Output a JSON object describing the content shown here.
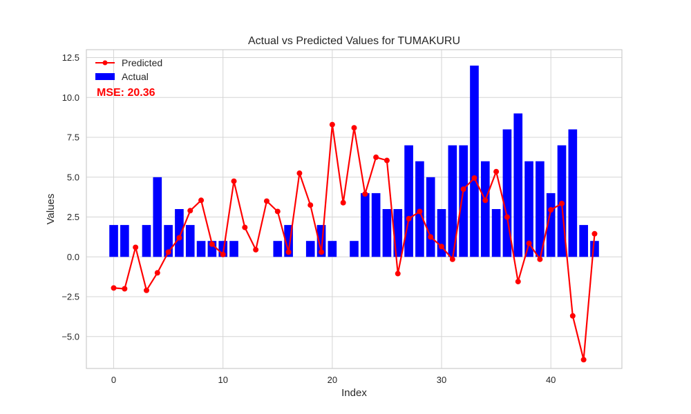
{
  "chart_data": {
    "type": "bar",
    "title": "Actual vs Predicted Values for TUMAKURU",
    "xlabel": "Index",
    "ylabel": "Values",
    "xlim": [
      -2.5,
      46.5
    ],
    "ylim": [
      -7.0,
      13.0
    ],
    "xticks": [
      0,
      10,
      20,
      30,
      40
    ],
    "yticks": [
      -5.0,
      -2.5,
      0.0,
      2.5,
      5.0,
      7.5,
      10.0,
      12.5
    ],
    "x": [
      0,
      1,
      2,
      3,
      4,
      5,
      6,
      7,
      8,
      9,
      10,
      11,
      12,
      13,
      14,
      15,
      16,
      17,
      18,
      19,
      20,
      21,
      22,
      23,
      24,
      25,
      26,
      27,
      28,
      29,
      30,
      31,
      32,
      33,
      34,
      35,
      36,
      37,
      38,
      39,
      40,
      41,
      42,
      43,
      44
    ],
    "series": [
      {
        "name": "Actual",
        "kind": "bar",
        "color": "#0000ff",
        "values": [
          2,
          2,
          0,
          2,
          5,
          2,
          3,
          2,
          1,
          1,
          1,
          1,
          0,
          0,
          0,
          1,
          2,
          0,
          1,
          2,
          1,
          0,
          1,
          4,
          4,
          3,
          3,
          7,
          6,
          5,
          3,
          7,
          7,
          12,
          6,
          3,
          8,
          9,
          6,
          6,
          4,
          7,
          8,
          2,
          1
        ]
      },
      {
        "name": "Predicted",
        "kind": "line",
        "color": "#ff0000",
        "values": [
          -1.95,
          -2.0,
          0.6,
          -2.1,
          -1.0,
          0.3,
          1.2,
          2.9,
          3.55,
          0.8,
          0.15,
          4.75,
          1.85,
          0.45,
          3.5,
          2.85,
          0.3,
          5.25,
          3.25,
          0.3,
          8.3,
          3.4,
          8.1,
          3.95,
          6.25,
          6.05,
          -1.05,
          2.4,
          2.85,
          1.25,
          0.65,
          -0.15,
          4.25,
          4.95,
          3.55,
          5.35,
          2.5,
          -1.55,
          0.85,
          -0.15,
          2.95,
          3.35,
          -3.7,
          -6.45,
          1.45
        ]
      }
    ],
    "legend_position": "top-left",
    "grid": true,
    "annotation": {
      "text": "MSE: 20.36",
      "color": "#ff0000"
    }
  }
}
